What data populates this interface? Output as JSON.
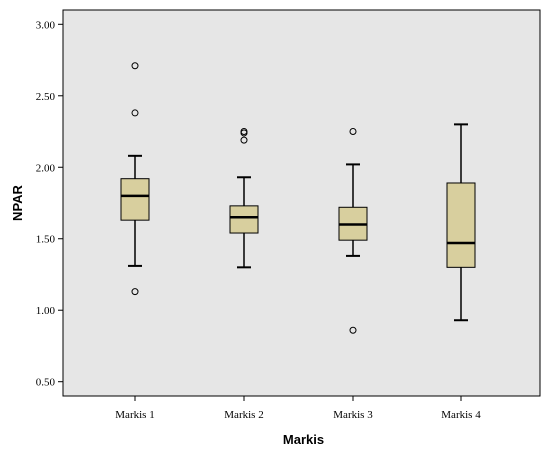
{
  "chart_data": {
    "type": "boxplot",
    "xlabel": "Markis",
    "ylabel": "NPAR",
    "ylim": [
      0.4,
      3.1
    ],
    "yticks": [
      "0.50",
      "1.00",
      "1.50",
      "2.00",
      "2.50",
      "3.00"
    ],
    "yticks_values": [
      0.5,
      1.0,
      1.5,
      2.0,
      2.5,
      3.0
    ],
    "grid": false,
    "colors": {
      "box_fill": "#d8cf9e",
      "plot_bg": "#e6e6e6",
      "line": "#000000"
    },
    "categories": [
      "Markis 1",
      "Markis 2",
      "Markis 3",
      "Markis 4"
    ],
    "boxes": [
      {
        "whisker_low": 1.31,
        "q1": 1.63,
        "median": 1.8,
        "q3": 1.92,
        "whisker_high": 2.08,
        "outliers": [
          2.71,
          2.38,
          1.13
        ]
      },
      {
        "whisker_low": 1.3,
        "q1": 1.54,
        "median": 1.65,
        "q3": 1.73,
        "whisker_high": 1.93,
        "outliers": [
          2.25,
          2.24,
          2.19
        ]
      },
      {
        "whisker_low": 1.38,
        "q1": 1.49,
        "median": 1.6,
        "q3": 1.72,
        "whisker_high": 2.02,
        "outliers": [
          2.25,
          0.86
        ]
      },
      {
        "whisker_low": 0.93,
        "q1": 1.3,
        "median": 1.47,
        "q3": 1.89,
        "whisker_high": 2.3,
        "outliers": []
      }
    ]
  }
}
